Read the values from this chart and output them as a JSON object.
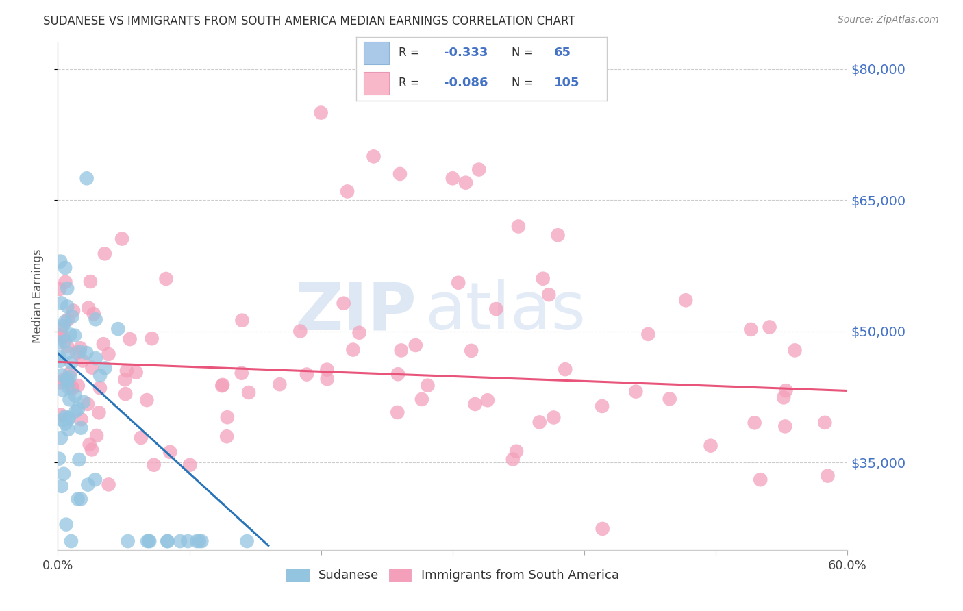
{
  "title": "SUDANESE VS IMMIGRANTS FROM SOUTH AMERICA MEDIAN EARNINGS CORRELATION CHART",
  "source": "Source: ZipAtlas.com",
  "ylabel": "Median Earnings",
  "xmin": 0.0,
  "xmax": 0.6,
  "ymin": 25000,
  "ymax": 83000,
  "yticks": [
    35000,
    50000,
    65000,
    80000
  ],
  "ytick_labels": [
    "$35,000",
    "$50,000",
    "$65,000",
    "$80,000"
  ],
  "xticks": [
    0.0,
    0.1,
    0.2,
    0.3,
    0.4,
    0.5,
    0.6
  ],
  "xtick_labels_show": [
    "0.0%",
    "",
    "",
    "",
    "",
    "",
    "60.0%"
  ],
  "background_color": "#ffffff",
  "sudanese_color": "#93c4e0",
  "south_america_color": "#f4a0bb",
  "sudanese_line_color": "#2874b8",
  "south_america_line_color": "#e8547a",
  "legend_R_color": "#4472c4",
  "legend_N_color": "#4472c4",
  "legend_text_color": "#333333",
  "watermark_ZIP_color": "#c8daea",
  "watermark_atlas_color": "#c8daea",
  "legend_label_1": "Sudanese",
  "legend_label_2": "Immigrants from South America",
  "sud_trendline_x0": 0.0,
  "sud_trendline_y0": 47500,
  "sud_trendline_x1": 0.16,
  "sud_trendline_y1": 25500,
  "sa_trendline_x0": 0.0,
  "sa_trendline_y0": 46500,
  "sa_trendline_x1": 0.6,
  "sa_trendline_y1": 43200
}
